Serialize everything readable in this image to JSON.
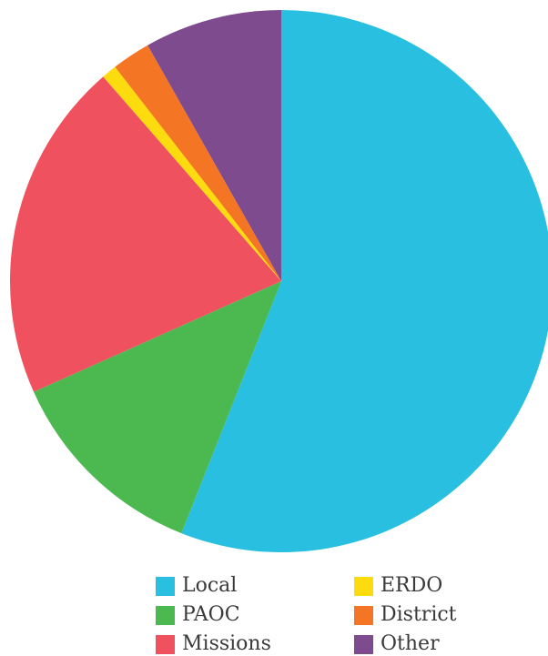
{
  "chart_data": {
    "type": "pie",
    "title": "",
    "start": "top",
    "direction": "clockwise",
    "legend_position": "bottom",
    "slices": [
      {
        "label": "Local",
        "value": 56.0,
        "color": "#29BFE0"
      },
      {
        "label": "PAOC",
        "value": 12.3,
        "color": "#4CB950"
      },
      {
        "label": "Missions",
        "value": 20.3,
        "color": "#EF525E"
      },
      {
        "label": "ERDO",
        "value": 0.9,
        "color": "#FCDC0E"
      },
      {
        "label": "District",
        "value": 2.3,
        "color": "#F47523"
      },
      {
        "label": "Other",
        "value": 8.2,
        "color": "#7D4B8E"
      }
    ]
  },
  "legend": {
    "items": [
      {
        "label": "Local",
        "color": "#29BFE0"
      },
      {
        "label": "ERDO",
        "color": "#FCDC0E"
      },
      {
        "label": "PAOC",
        "color": "#4CB950"
      },
      {
        "label": "District",
        "color": "#F47523"
      },
      {
        "label": "Missions",
        "color": "#EF525E"
      },
      {
        "label": "Other",
        "color": "#7D4B8E"
      }
    ]
  }
}
